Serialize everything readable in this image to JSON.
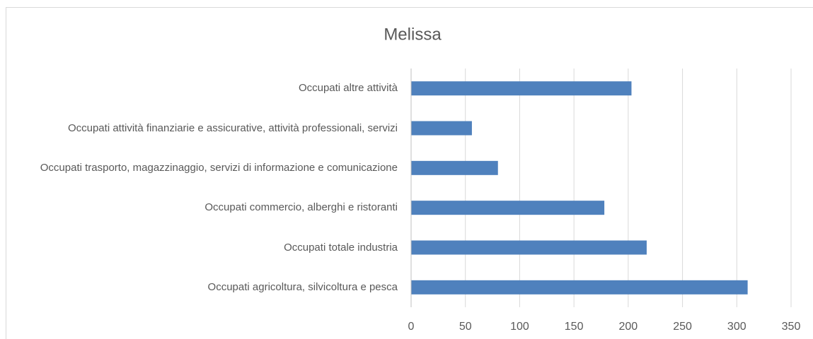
{
  "chart_data": {
    "type": "barh",
    "title": "Melissa",
    "categories": [
      "Occupati altre attività",
      "Occupati attività finanziarie e assicurative, attività professionali, servizi",
      "Occupati trasporto, magazzinaggio, servizi di informazione e comunicazione",
      "Occupati commercio, alberghi e ristoranti",
      "Occupati totale industria",
      "Occupati agricoltura, silvicoltura e pesca"
    ],
    "values": [
      203,
      56,
      80,
      178,
      217,
      310
    ],
    "color": "#4f81bd",
    "xlim": [
      0,
      350
    ],
    "xticks": [
      0,
      50,
      100,
      150,
      200,
      250,
      300,
      350
    ],
    "grid": true
  }
}
